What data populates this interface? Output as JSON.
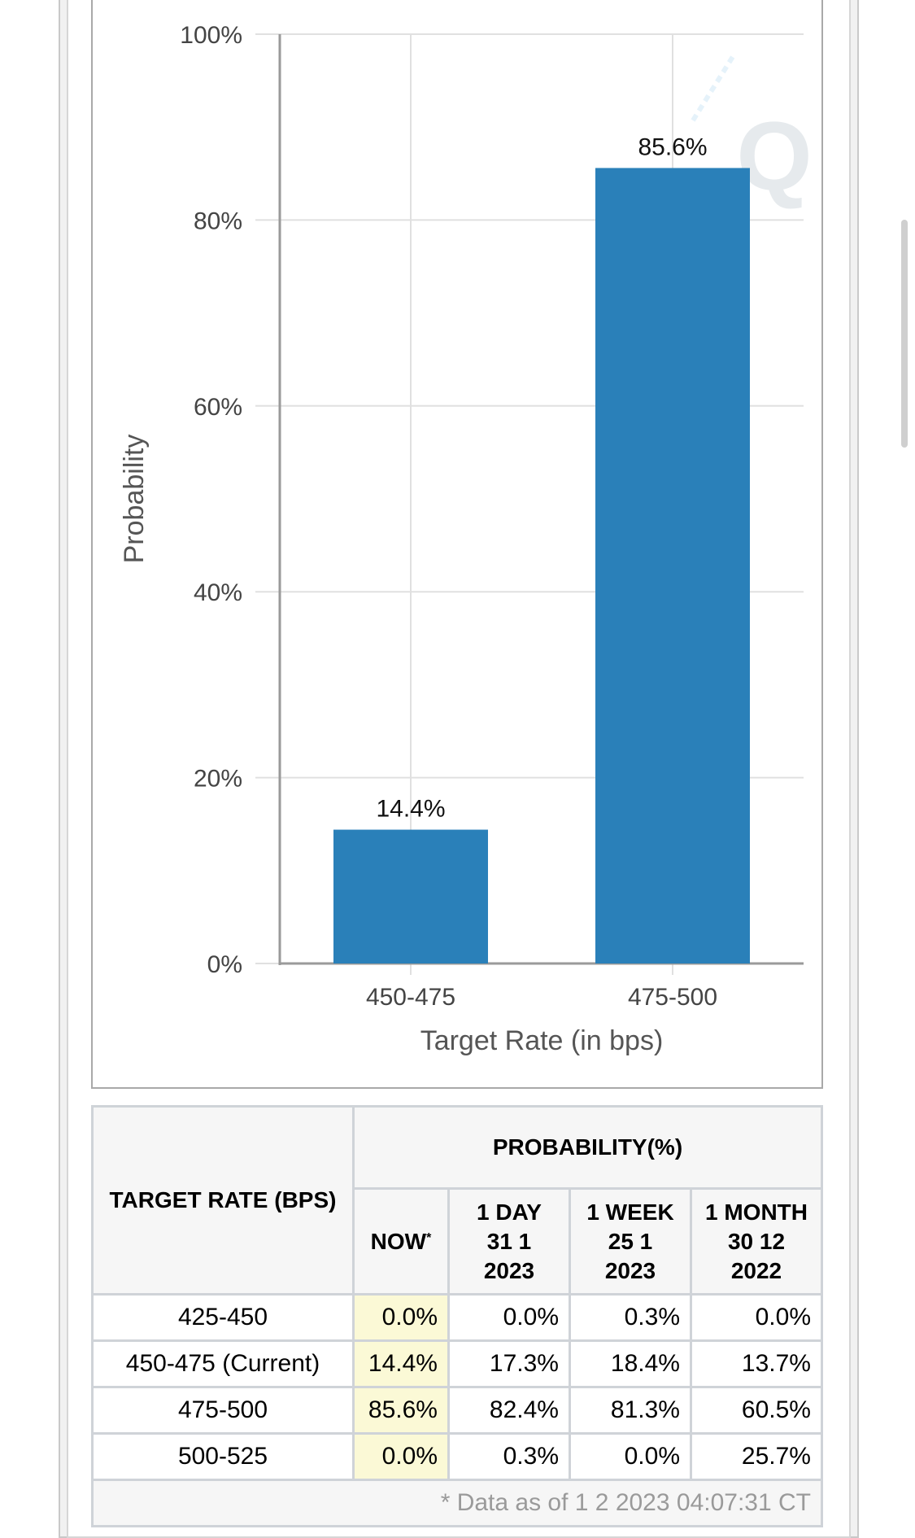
{
  "chart_data": {
    "type": "bar",
    "categories": [
      "450-475",
      "475-500"
    ],
    "values": [
      14.4,
      85.6
    ],
    "value_labels": [
      "14.4%",
      "85.6%"
    ],
    "title": "",
    "xlabel": "Target Rate (in bps)",
    "ylabel": "Probability",
    "ylim": [
      0,
      100
    ],
    "yticks": [
      "0%",
      "20%",
      "40%",
      "60%",
      "80%",
      "100%"
    ],
    "grid": true,
    "colors": {
      "bar": "#2a80b9",
      "grid": "#e0e0e0",
      "axis": "#9a9a9a"
    }
  },
  "table": {
    "header_target": "TARGET RATE (BPS)",
    "header_probability": "PROBABILITY(%)",
    "col_now": "NOW",
    "col_now_marker": "*",
    "col_1day": [
      "1 DAY",
      "31 1",
      "2023"
    ],
    "col_1week": [
      "1 WEEK",
      "25 1",
      "2023"
    ],
    "col_1month": [
      "1 MONTH",
      "30 12",
      "2022"
    ],
    "rows": [
      {
        "rate": "425-450",
        "now": "0.0%",
        "day": "0.0%",
        "week": "0.3%",
        "month": "0.0%"
      },
      {
        "rate": "450-475 (Current)",
        "now": "14.4%",
        "day": "17.3%",
        "week": "18.4%",
        "month": "13.7%"
      },
      {
        "rate": "475-500",
        "now": "85.6%",
        "day": "82.4%",
        "week": "81.3%",
        "month": "60.5%"
      },
      {
        "rate": "500-525",
        "now": "0.0%",
        "day": "0.3%",
        "week": "0.0%",
        "month": "25.7%"
      }
    ],
    "footnote": "* Data as of 1 2 2023 04:07:31 CT"
  }
}
